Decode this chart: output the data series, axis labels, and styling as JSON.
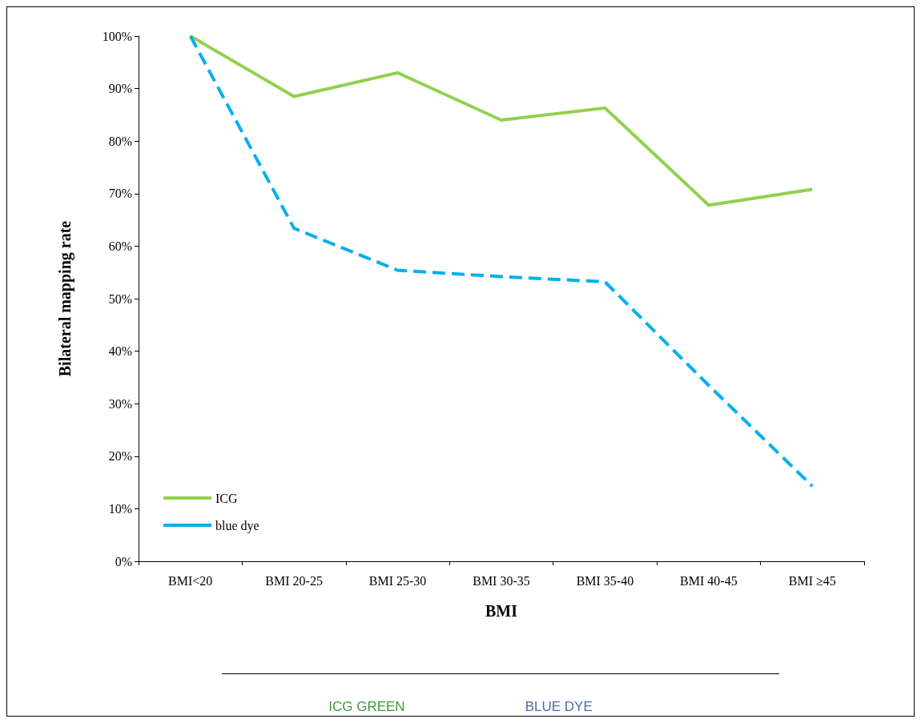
{
  "chart_data": {
    "type": "line",
    "xlabel": "BMI",
    "ylabel": "Bilateral mapping rate",
    "categories": [
      "BMI<20",
      "BMI 20-25",
      "BMI 25-30",
      "BMI 30-35",
      "BMI 35-40",
      "BMI 40-45",
      "BMI ≥45"
    ],
    "series": [
      {
        "name": "ICG",
        "color": "#92d050",
        "line_style": "solid",
        "values": [
          100,
          88.5,
          93,
          84,
          86.3,
          67.8,
          70.8
        ]
      },
      {
        "name": "blue dye",
        "color": "#00b0f0",
        "line_style": "dashed",
        "values": [
          100,
          63.4,
          55.4,
          54.2,
          53.2,
          33.5,
          14.3
        ]
      }
    ],
    "ylim": [
      0,
      100
    ],
    "yticks": [
      {
        "value": 0,
        "label": "0%"
      },
      {
        "value": 10,
        "label": "10%"
      },
      {
        "value": 20,
        "label": "20%"
      },
      {
        "value": 30,
        "label": "30%"
      },
      {
        "value": 40,
        "label": "40%"
      },
      {
        "value": 50,
        "label": "50%"
      },
      {
        "value": 60,
        "label": "60%"
      },
      {
        "value": 70,
        "label": "70%"
      },
      {
        "value": 80,
        "label": "80%"
      },
      {
        "value": 90,
        "label": "90%"
      },
      {
        "value": 100,
        "label": "100%"
      }
    ],
    "grid": false,
    "legend": "bottom left",
    "marker": "none",
    "annotations": [
      "ICG GREEN",
      "BLUE DYE"
    ]
  }
}
